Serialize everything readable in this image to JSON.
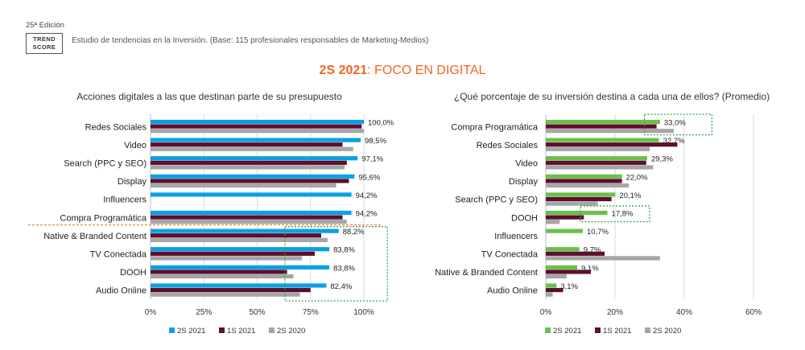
{
  "header": {
    "edition": "25ª Edición",
    "logo_line1": "TREND",
    "logo_line2": "SCORE",
    "study": "Estudio de tendencias en la Inversión. (Base: 115 profesionales responsables de Marketing-Medios)",
    "title_accent": "2S 2021",
    "title_rest": ": FOCO EN DIGITAL",
    "accent_color": "#F26522"
  },
  "colors": {
    "left": [
      "#0BA0E6",
      "#5C0F2E",
      "#A6A6A6"
    ],
    "right": [
      "#6CC04A",
      "#5C0F2E",
      "#A6A6A6"
    ],
    "highlight_box": "#2E9E4F",
    "separator": "#F26522"
  },
  "chart_data": [
    {
      "type": "bar",
      "orientation": "horizontal",
      "title": "Acciones digitales a las que destinan parte de su presupuesto",
      "categories": [
        "Redes Sociales",
        "Video",
        "Search (PPC y SEO)",
        "Display",
        "Influencers",
        "Compra Programática",
        "Native & Branded Content",
        "TV Conectada",
        "DOOH",
        "Audio Online"
      ],
      "series": [
        {
          "name": "2S 2021",
          "values": [
            100.0,
            98.5,
            97.1,
            95.6,
            94.2,
            94.2,
            88.2,
            83.8,
            83.8,
            82.4
          ]
        },
        {
          "name": "1S 2021",
          "values": [
            99,
            90,
            92,
            93,
            null,
            90,
            80,
            77,
            64,
            75
          ]
        },
        {
          "name": "2S 2020",
          "values": [
            100,
            95,
            91,
            87,
            null,
            92,
            83,
            71,
            67,
            70
          ]
        }
      ],
      "data_labels": [
        "100,0%",
        "98,5%",
        "97,1%",
        "95,6%",
        "94,2%",
        "94,2%",
        "88,2%",
        "83,8%",
        "83,8%",
        "82,4%"
      ],
      "xlim": [
        0,
        100
      ],
      "ticks": [
        "0%",
        "25%",
        "50%",
        "75%",
        "100%"
      ],
      "grid": true,
      "legend": "bottom"
    },
    {
      "type": "bar",
      "orientation": "horizontal",
      "title": "¿Qué porcentaje de su inversión destina a cada una de ellos? (Promedio)",
      "categories": [
        "Compra Programática",
        "Redes Sociales",
        "Video",
        "Display",
        "Search (PPC y SEO)",
        "DOOH",
        "Influencers",
        "TV Conectada",
        "Native & Branded Content",
        "Audio Online"
      ],
      "series": [
        {
          "name": "2S 2021",
          "values": [
            33.0,
            32.7,
            29.3,
            22.0,
            20.1,
            17.8,
            10.7,
            9.7,
            9.1,
            3.1
          ]
        },
        {
          "name": "1S 2021",
          "values": [
            32,
            38,
            29,
            22,
            19,
            11,
            null,
            17,
            13,
            5
          ]
        },
        {
          "name": "2S 2020",
          "values": [
            37,
            30,
            31,
            24,
            15,
            4,
            null,
            33,
            6,
            2
          ]
        }
      ],
      "data_labels": [
        "33,0%",
        "32,7%",
        "29,3%",
        "22,0%",
        "20,1%",
        "17,8%",
        "10,7%",
        "9,7%",
        "9,1%",
        "3,1%"
      ],
      "xlim": [
        0,
        60
      ],
      "ticks": [
        "0%",
        "20%",
        "40%",
        "60%"
      ],
      "grid": true,
      "legend": "bottom"
    }
  ]
}
